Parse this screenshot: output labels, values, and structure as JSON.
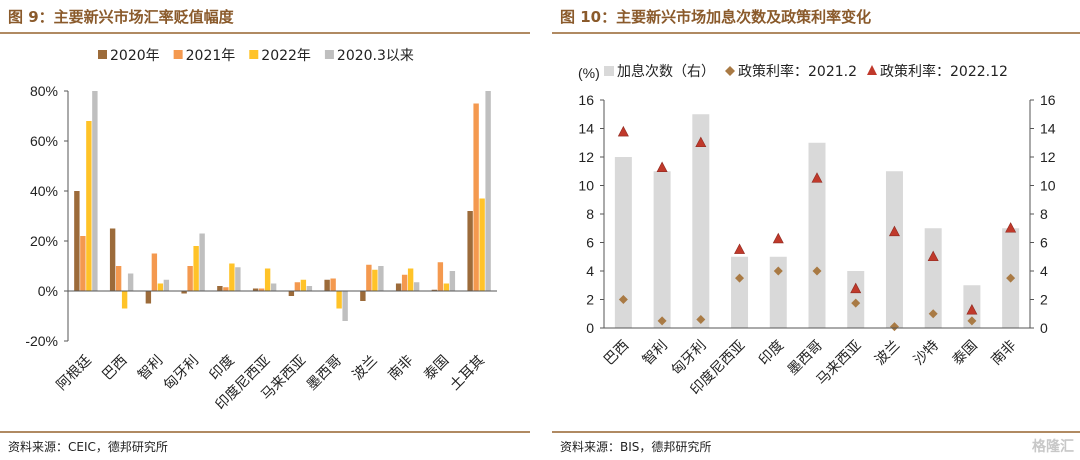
{
  "left": {
    "title": "图 9：主要新兴市场汇率贬值幅度",
    "source": "资料来源：CEIC，德邦研究所",
    "chart_data": {
      "type": "bar",
      "categories": [
        "阿根廷",
        "巴西",
        "智利",
        "匈牙利",
        "印度",
        "印度尼西亚",
        "马来西亚",
        "墨西哥",
        "波兰",
        "南非",
        "泰国",
        "土耳其"
      ],
      "series": [
        {
          "name": "2020年",
          "color": "#9c6b3a",
          "values": [
            0.4,
            0.25,
            -0.05,
            -0.01,
            0.02,
            0.01,
            -0.02,
            0.045,
            -0.04,
            0.03,
            0.005,
            0.32
          ]
        },
        {
          "name": "2021年",
          "color": "#f4994f",
          "values": [
            0.22,
            0.1,
            0.15,
            0.1,
            0.015,
            0.01,
            0.035,
            0.05,
            0.105,
            0.065,
            0.115,
            0.75
          ]
        },
        {
          "name": "2022年",
          "color": "#ffc328",
          "values": [
            0.68,
            -0.07,
            0.03,
            0.18,
            0.11,
            0.09,
            0.045,
            -0.07,
            0.085,
            0.09,
            0.03,
            0.37
          ]
        },
        {
          "name": "2020.3以来",
          "color": "#bfbfbf",
          "values": [
            0.8,
            0.07,
            0.045,
            0.23,
            0.095,
            0.03,
            0.02,
            -0.12,
            0.1,
            0.035,
            0.08,
            0.8
          ]
        }
      ],
      "ylim": [
        -0.2,
        0.8
      ],
      "yticks": [
        "-20%",
        "0%",
        "20%",
        "40%",
        "60%",
        "80%"
      ],
      "legend_position": "top"
    }
  },
  "right": {
    "title": "图 10：主要新兴市场加息次数及政策利率变化",
    "source": "资料来源：BIS，德邦研究所",
    "unit_label": "(%)",
    "chart_data": {
      "type": "bar",
      "categories": [
        "巴西",
        "智利",
        "匈牙利",
        "印度尼西亚",
        "印度",
        "墨西哥",
        "马来西亚",
        "波兰",
        "沙特",
        "泰国",
        "南非"
      ],
      "series": [
        {
          "name": "加息次数（右）",
          "kind": "bar",
          "axis": "right",
          "color": "#d9d9d9",
          "values": [
            12,
            11,
            15,
            5,
            5,
            13,
            4,
            11,
            7,
            3,
            7
          ]
        },
        {
          "name": "政策利率：2021.2",
          "kind": "scatter",
          "marker": "diamond",
          "color": "#a97a44",
          "values": [
            2.0,
            0.5,
            0.6,
            3.5,
            4.0,
            4.0,
            1.75,
            0.1,
            1.0,
            0.5,
            3.5
          ]
        },
        {
          "name": "政策利率：2022.12",
          "kind": "scatter",
          "marker": "triangle",
          "color": "#c0392b",
          "values": [
            13.75,
            11.25,
            13.0,
            5.5,
            6.25,
            10.5,
            2.75,
            6.75,
            5.0,
            1.25,
            7.0
          ]
        }
      ],
      "ylim": [
        0,
        16
      ],
      "yticks": [
        "0",
        "2",
        "4",
        "6",
        "8",
        "10",
        "12",
        "14",
        "16"
      ],
      "legend_position": "top"
    }
  },
  "watermark": "格隆汇"
}
